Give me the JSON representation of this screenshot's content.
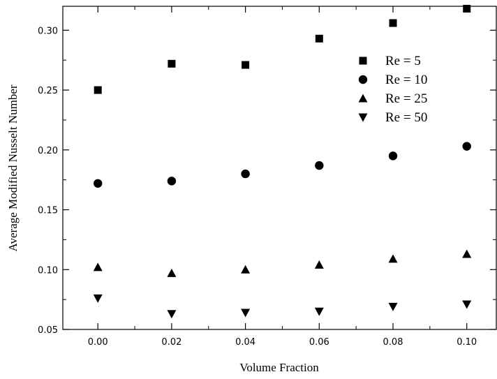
{
  "chart_data": {
    "type": "scatter",
    "xlabel": "Volume Fraction",
    "ylabel": "Average Modified Nusselt Number",
    "xlim": [
      -0.0095,
      0.108
    ],
    "ylim": [
      0.05,
      0.32
    ],
    "x_ticks": [
      "0.00",
      "0.02",
      "0.04",
      "0.06",
      "0.08",
      "0.10"
    ],
    "y_ticks": [
      "0.05",
      "0.10",
      "0.15",
      "0.20",
      "0.25",
      "0.30"
    ],
    "x_tick_values": [
      0.0,
      0.02,
      0.04,
      0.06,
      0.08,
      0.1
    ],
    "y_tick_values": [
      0.05,
      0.1,
      0.15,
      0.2,
      0.25,
      0.3
    ],
    "grid": false,
    "legend_position": "top-right",
    "x": [
      0.0,
      0.02,
      0.04,
      0.06,
      0.08,
      0.1
    ],
    "series": [
      {
        "name": "Re = 5",
        "marker": "square",
        "values": [
          0.25,
          0.272,
          0.271,
          0.293,
          0.306,
          0.318
        ]
      },
      {
        "name": "Re = 10",
        "marker": "circle",
        "values": [
          0.172,
          0.174,
          0.18,
          0.187,
          0.195,
          0.203
        ]
      },
      {
        "name": "Re = 25",
        "marker": "triangle-up",
        "values": [
          0.102,
          0.097,
          0.1,
          0.104,
          0.109,
          0.113
        ]
      },
      {
        "name": "Re = 50",
        "marker": "triangle-down",
        "values": [
          0.076,
          0.063,
          0.064,
          0.065,
          0.069,
          0.071
        ]
      }
    ],
    "colors": {
      "marker": "#000000",
      "axis": "#000000"
    }
  }
}
